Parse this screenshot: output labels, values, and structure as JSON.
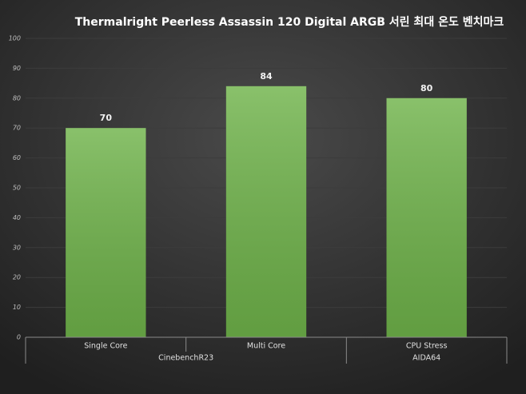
{
  "chart_data": {
    "type": "bar",
    "title": "Thermalright Peerless Assassin 120 Digital ARGB 서린 최대 온도 벤치마크",
    "categories": [
      "Single Core",
      "Multi Core",
      "CPU Stress"
    ],
    "groups": [
      {
        "name": "CinebenchR23",
        "span": 2
      },
      {
        "name": "AIDA64",
        "span": 1
      }
    ],
    "values": [
      70,
      84,
      80
    ],
    "color": "#6fb34a",
    "ylim": [
      0,
      100
    ],
    "yticks": [
      0,
      10,
      20,
      30,
      40,
      50,
      60,
      70,
      80,
      90,
      100
    ],
    "grid": true
  }
}
